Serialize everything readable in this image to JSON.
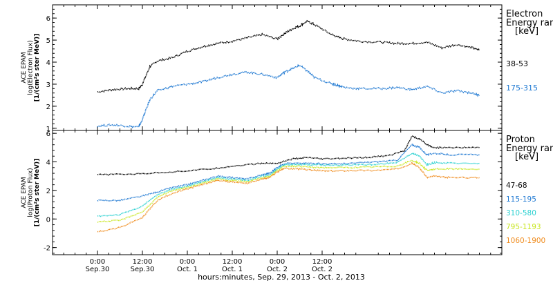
{
  "chart_data": [
    {
      "type": "scatter",
      "panel": "electron",
      "ylabel_lines": [
        "ACE EPAM",
        "log(Electron Flux)",
        "[1/(cm²s ster MeV)]"
      ],
      "ylim": [
        0.9,
        6.6
      ],
      "yticks": [
        1,
        2,
        3,
        4,
        5,
        6
      ],
      "legend_title": [
        "Electron",
        "Energy ran",
        "[keV]"
      ],
      "series": [
        {
          "name": "38-53",
          "color": "#000000",
          "x": [
            0,
            4,
            8,
            11,
            12,
            14,
            16,
            20,
            24,
            28,
            32,
            36,
            40,
            44,
            48,
            50,
            52,
            54,
            56,
            58,
            62,
            64,
            66,
            70,
            76,
            80,
            84,
            88,
            92,
            96,
            100,
            102
          ],
          "y": [
            2.65,
            2.75,
            2.8,
            2.8,
            3.0,
            3.8,
            4.05,
            4.2,
            4.5,
            4.7,
            4.85,
            4.95,
            5.1,
            5.25,
            5.05,
            5.3,
            5.5,
            5.65,
            5.85,
            5.7,
            5.3,
            5.15,
            5.05,
            4.95,
            4.9,
            4.85,
            4.85,
            4.9,
            4.65,
            4.8,
            4.65,
            4.55
          ]
        },
        {
          "name": "175-315",
          "color": "#1e78d2",
          "x": [
            0,
            4,
            8,
            11,
            12,
            14,
            16,
            20,
            24,
            28,
            32,
            36,
            40,
            44,
            48,
            50,
            52,
            54,
            56,
            58,
            62,
            64,
            66,
            70,
            76,
            80,
            84,
            88,
            92,
            96,
            100,
            102
          ],
          "y": [
            1.1,
            1.15,
            1.1,
            1.05,
            1.4,
            2.3,
            2.7,
            2.9,
            3.0,
            3.1,
            3.3,
            3.45,
            3.55,
            3.45,
            3.3,
            3.55,
            3.7,
            3.85,
            3.6,
            3.3,
            3.05,
            2.95,
            2.85,
            2.8,
            2.8,
            2.85,
            2.75,
            2.9,
            2.6,
            2.7,
            2.6,
            2.5
          ]
        }
      ]
    },
    {
      "type": "scatter",
      "panel": "proton",
      "ylabel_lines": [
        "ACE EPAM",
        "log(Proton Flux)",
        "[1/(cm²s ster MeV)]"
      ],
      "ylim": [
        -2.5,
        6.2
      ],
      "yticks": [
        -2,
        0,
        2,
        4,
        6
      ],
      "legend_title": [
        "Proton",
        "Energy ran",
        "[keV]"
      ],
      "series": [
        {
          "name": "47-68",
          "color": "#000000",
          "x": [
            0,
            10,
            20,
            30,
            36,
            44,
            48,
            52,
            56,
            60,
            66,
            72,
            78,
            82,
            84,
            86,
            88,
            90,
            94,
            102
          ],
          "y": [
            3.1,
            3.15,
            3.3,
            3.5,
            3.7,
            3.9,
            3.9,
            4.2,
            4.3,
            4.2,
            4.25,
            4.3,
            4.45,
            4.8,
            5.8,
            5.6,
            5.2,
            5.0,
            5.0,
            5.0
          ]
        },
        {
          "name": "115-195",
          "color": "#1e78d2",
          "x": [
            0,
            6,
            12,
            16,
            20,
            24,
            28,
            32,
            36,
            40,
            44,
            46,
            48,
            50,
            54,
            58,
            62,
            68,
            74,
            80,
            84,
            86,
            88,
            90,
            94,
            102
          ],
          "y": [
            1.3,
            1.3,
            1.6,
            1.9,
            2.2,
            2.4,
            2.7,
            3.0,
            2.9,
            2.8,
            3.1,
            3.2,
            3.6,
            3.9,
            3.9,
            3.9,
            3.85,
            3.9,
            4.0,
            4.1,
            5.2,
            5.0,
            4.5,
            4.6,
            4.5,
            4.5
          ]
        },
        {
          "name": "310-580",
          "color": "#29d0d0",
          "x": [
            0,
            6,
            12,
            16,
            20,
            24,
            28,
            32,
            36,
            40,
            44,
            46,
            48,
            50,
            54,
            58,
            62,
            68,
            74,
            80,
            84,
            86,
            88,
            90,
            94,
            102
          ],
          "y": [
            0.2,
            0.3,
            0.9,
            1.7,
            2.1,
            2.3,
            2.6,
            2.9,
            2.8,
            2.7,
            3.0,
            3.1,
            3.5,
            3.8,
            3.8,
            3.8,
            3.75,
            3.8,
            3.8,
            3.95,
            4.6,
            4.4,
            3.8,
            3.95,
            3.9,
            3.9
          ]
        },
        {
          "name": "795-1193",
          "color": "#c8e61e",
          "x": [
            0,
            6,
            12,
            16,
            20,
            24,
            28,
            32,
            36,
            40,
            44,
            46,
            48,
            50,
            54,
            58,
            62,
            68,
            74,
            80,
            84,
            86,
            88,
            90,
            94,
            102
          ],
          "y": [
            -0.2,
            -0.1,
            0.5,
            1.5,
            2.0,
            2.2,
            2.5,
            2.8,
            2.7,
            2.6,
            2.9,
            3.0,
            3.4,
            3.7,
            3.7,
            3.6,
            3.6,
            3.6,
            3.65,
            3.7,
            4.1,
            3.9,
            3.4,
            3.5,
            3.5,
            3.5
          ]
        },
        {
          "name": "1060-1900",
          "color": "#f08c1e",
          "x": [
            0,
            6,
            12,
            16,
            20,
            24,
            28,
            32,
            36,
            40,
            44,
            46,
            48,
            50,
            54,
            58,
            62,
            68,
            74,
            80,
            84,
            86,
            88,
            90,
            94,
            102
          ],
          "y": [
            -0.9,
            -0.6,
            0.1,
            1.3,
            1.8,
            2.1,
            2.4,
            2.7,
            2.6,
            2.5,
            2.8,
            2.9,
            3.3,
            3.55,
            3.5,
            3.4,
            3.35,
            3.4,
            3.4,
            3.5,
            3.9,
            3.6,
            2.9,
            3.0,
            2.9,
            2.9
          ]
        }
      ]
    }
  ],
  "x_axis": {
    "xlim": [
      -12,
      108
    ],
    "ticks": [
      {
        "hours": 0,
        "time": "0:00",
        "date": "Sep.30"
      },
      {
        "hours": 12,
        "time": "12:00",
        "date": "Sep.30"
      },
      {
        "hours": 24,
        "time": "0:00",
        "date": "Oct. 1"
      },
      {
        "hours": 36,
        "time": "12:00",
        "date": "Oct. 1"
      },
      {
        "hours": 48,
        "time": "0:00",
        "date": "Oct. 2"
      },
      {
        "hours": 60,
        "time": "12:00",
        "date": "Oct. 2"
      }
    ],
    "label": "hours:minutes, Sep. 29, 2013 - Oct. 2, 2013"
  }
}
